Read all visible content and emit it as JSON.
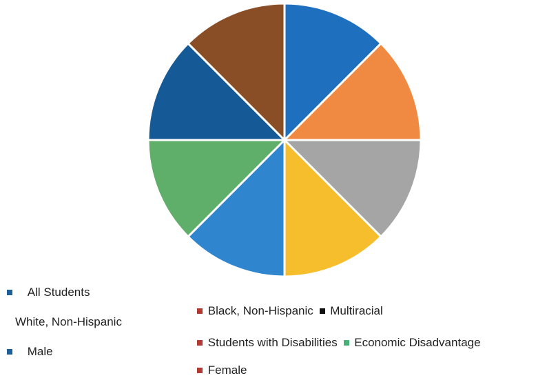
{
  "chart_data": {
    "type": "pie",
    "labels": [
      "All Students",
      "White, Non-Hispanic",
      "Black, Non-Hispanic",
      "Multiracial",
      "Students with Disabilities",
      "Economic Disadvantage",
      "Male",
      "Female"
    ],
    "values": [
      12.5,
      12.5,
      12.5,
      12.5,
      12.5,
      12.5,
      12.5,
      12.5
    ],
    "slice_colors": [
      "#1f6fbf",
      "#f08a43",
      "#a5a5a5",
      "#f6be2c",
      "#2f86cf",
      "#5fae6a",
      "#155a96",
      "#8a4e26"
    ],
    "legend": [
      {
        "label": "All Students",
        "color": "#1f5f99"
      },
      {
        "label": "White, Non-Hispanic",
        "color": ""
      },
      {
        "label": "Male",
        "color": "#1f5f99"
      },
      {
        "label": "Black, Non-Hispanic",
        "color": "#b33a32"
      },
      {
        "label": "Multiracial",
        "color": "#111111"
      },
      {
        "label": "Students with Disabilities",
        "color": "#b33a32"
      },
      {
        "label": "Economic Disadvantage",
        "color": "#4caf7a"
      },
      {
        "label": "Female",
        "color": "#b33a32"
      }
    ],
    "legend_position": "bottom"
  }
}
